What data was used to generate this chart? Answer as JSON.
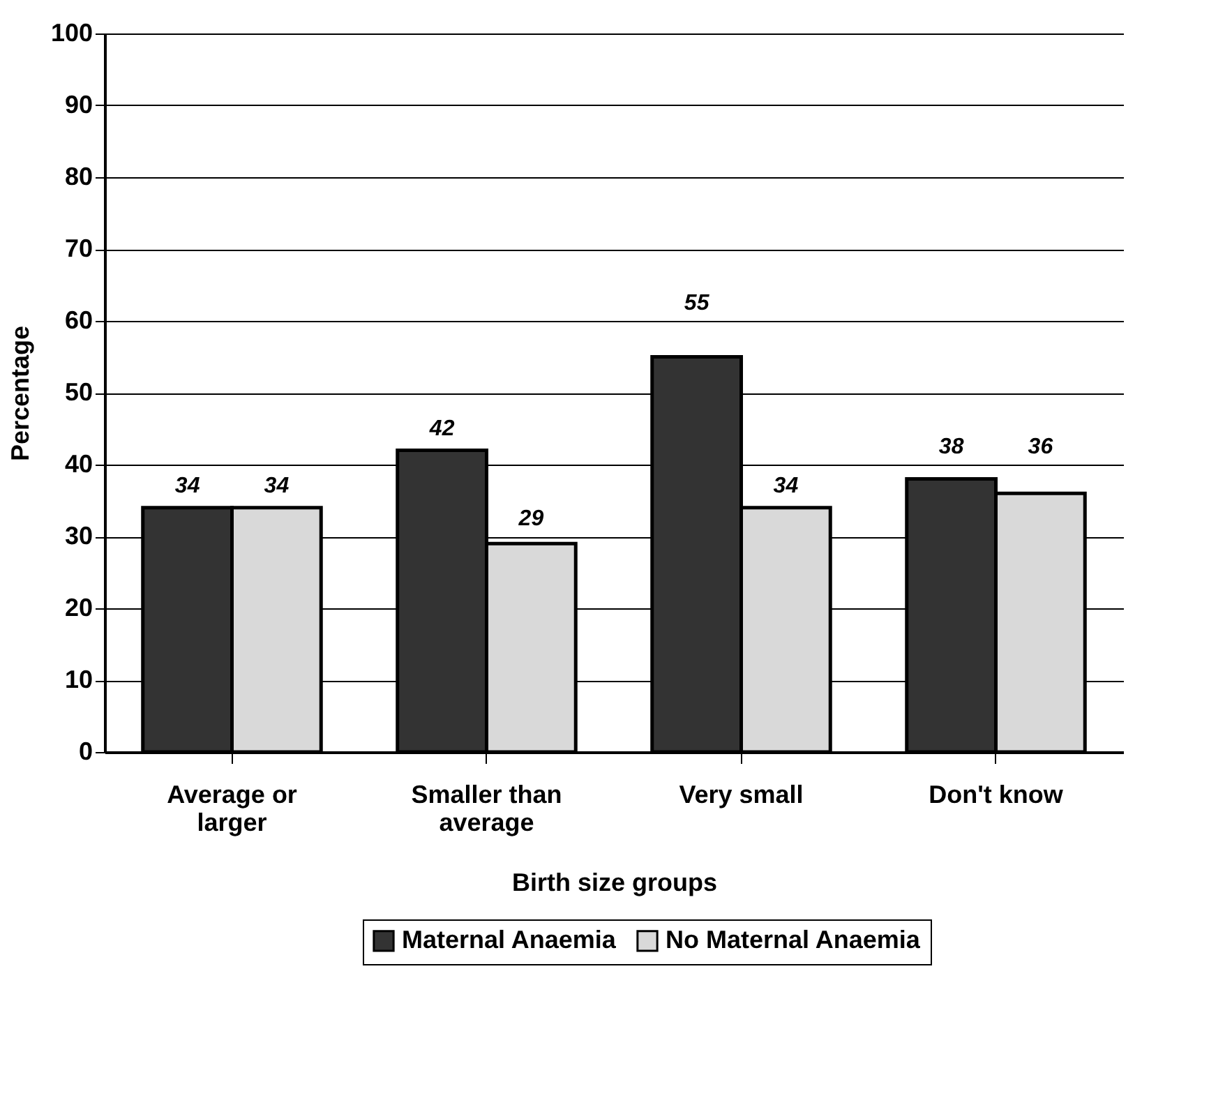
{
  "chart_data": {
    "type": "bar",
    "xlabel": "Birth size groups",
    "ylabel": "Percentage",
    "categories": [
      "Average or larger",
      "Smaller than average",
      "Very small",
      "Don't know"
    ],
    "series": [
      {
        "name": "Maternal Anaemia",
        "color": "#333333",
        "values": [
          34,
          42,
          55,
          38
        ]
      },
      {
        "name": "No Maternal Anaemia",
        "color": "#d9d9d9",
        "values": [
          34,
          29,
          34,
          36
        ]
      }
    ],
    "ylim": [
      0,
      100
    ],
    "yticks": [
      0,
      10,
      20,
      30,
      40,
      50,
      60,
      70,
      80,
      90,
      100
    ],
    "grid": "y",
    "legend": "bottom",
    "data_labels": true
  }
}
